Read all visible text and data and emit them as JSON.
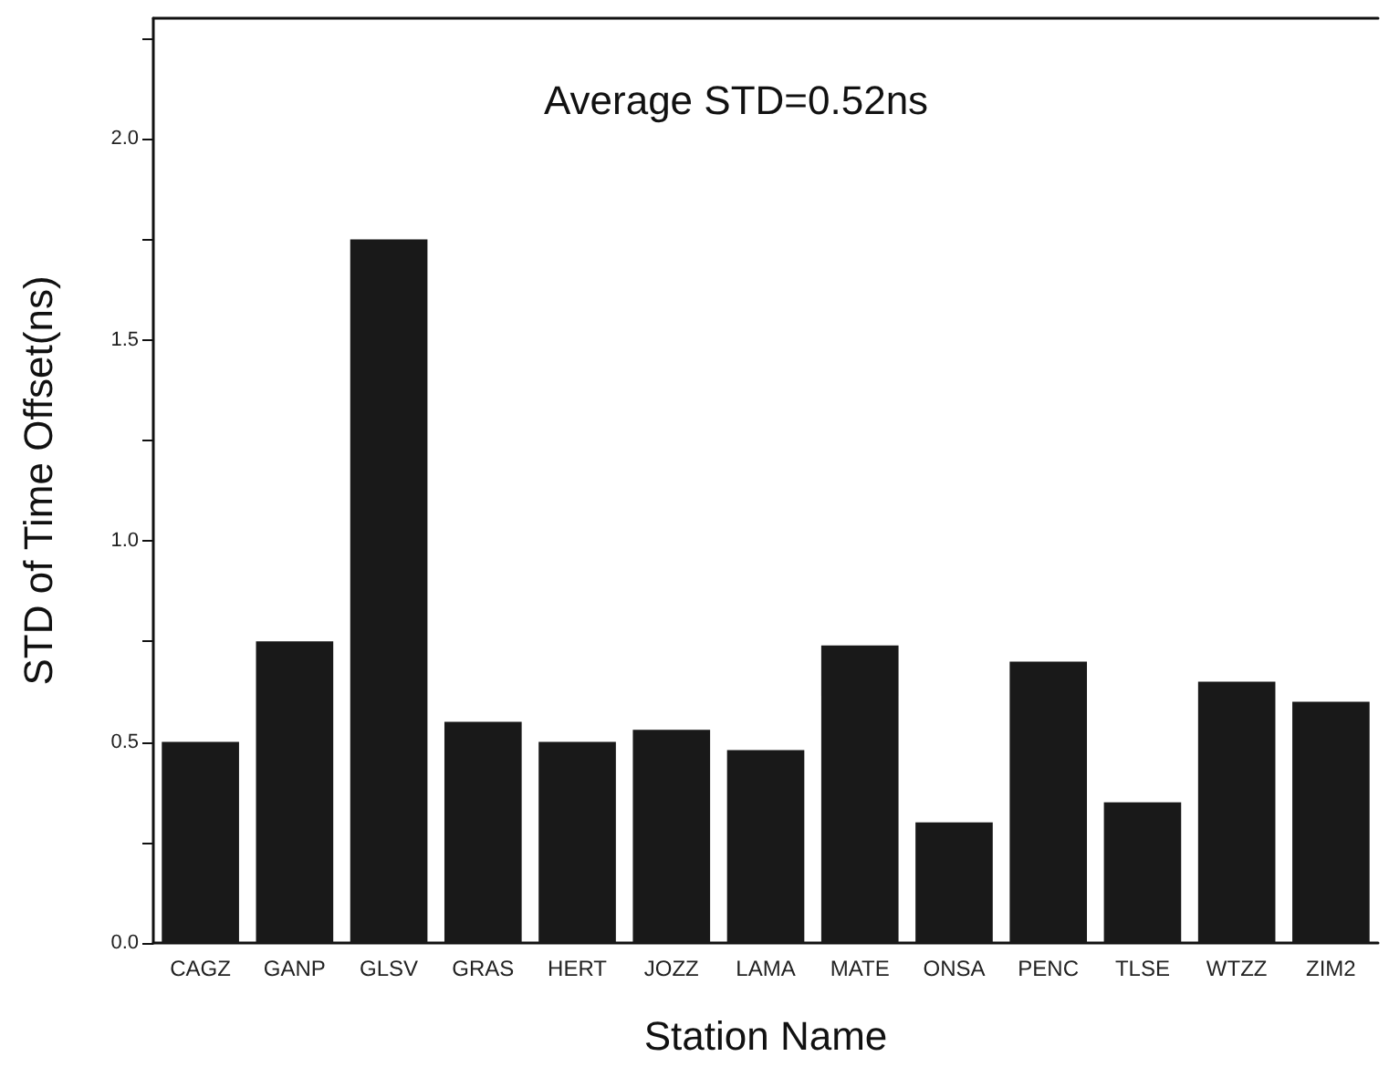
{
  "chart_data": {
    "type": "bar",
    "categories": [
      "CAGZ",
      "GANP",
      "GLSV",
      "GRAS",
      "HERT",
      "JOZZ",
      "LAMA",
      "MATE",
      "ONSA",
      "PENC",
      "TLSE",
      "WTZZ",
      "ZIM2"
    ],
    "values": [
      0.5,
      0.75,
      1.75,
      0.55,
      0.5,
      0.53,
      0.48,
      0.74,
      0.3,
      0.7,
      0.35,
      0.65,
      0.6
    ],
    "color": "#191919",
    "xlabel": "Station Name",
    "ylabel": "STD of Time Offset(ns)",
    "annotations": [
      "Average STD=0.52ns"
    ],
    "ylim": [
      0,
      2.3
    ],
    "yticks": [
      {
        "value": 0,
        "label": "0.0"
      },
      {
        "value": 0.25,
        "label": null
      },
      {
        "value": 0.5,
        "label": "0.5"
      },
      {
        "value": 0.75,
        "label": null
      },
      {
        "value": 1,
        "label": "1.0"
      },
      {
        "value": 1.25,
        "label": null
      },
      {
        "value": 1.5,
        "label": "1.5"
      },
      {
        "value": 1.75,
        "label": null
      },
      {
        "value": 2,
        "label": "2.0"
      },
      {
        "value": 2.25,
        "label": null
      }
    ]
  }
}
